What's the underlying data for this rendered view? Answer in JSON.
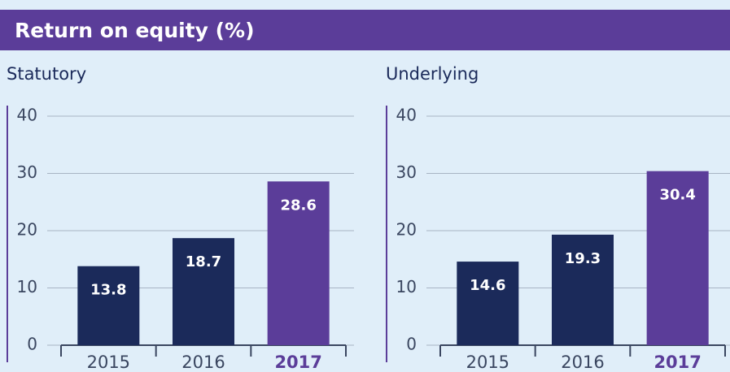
{
  "header": {
    "title": "Return on equity (%)"
  },
  "chart_data": [
    {
      "type": "bar",
      "title": "Statutory",
      "categories": [
        "2015",
        "2016",
        "2017"
      ],
      "values": [
        13.8,
        18.7,
        28.6
      ],
      "colors": [
        "#1b2a5a",
        "#1b2a5a",
        "#5b3d99"
      ],
      "ylim": [
        0,
        40
      ],
      "yticks": [
        0,
        10,
        20,
        30,
        40
      ],
      "grid": true
    },
    {
      "type": "bar",
      "title": "Underlying",
      "categories": [
        "2015",
        "2016",
        "2017"
      ],
      "values": [
        14.6,
        19.3,
        30.4
      ],
      "colors": [
        "#1b2a5a",
        "#1b2a5a",
        "#5b3d99"
      ],
      "ylim": [
        0,
        40
      ],
      "yticks": [
        0,
        10,
        20,
        30,
        40
      ],
      "grid": true
    }
  ]
}
